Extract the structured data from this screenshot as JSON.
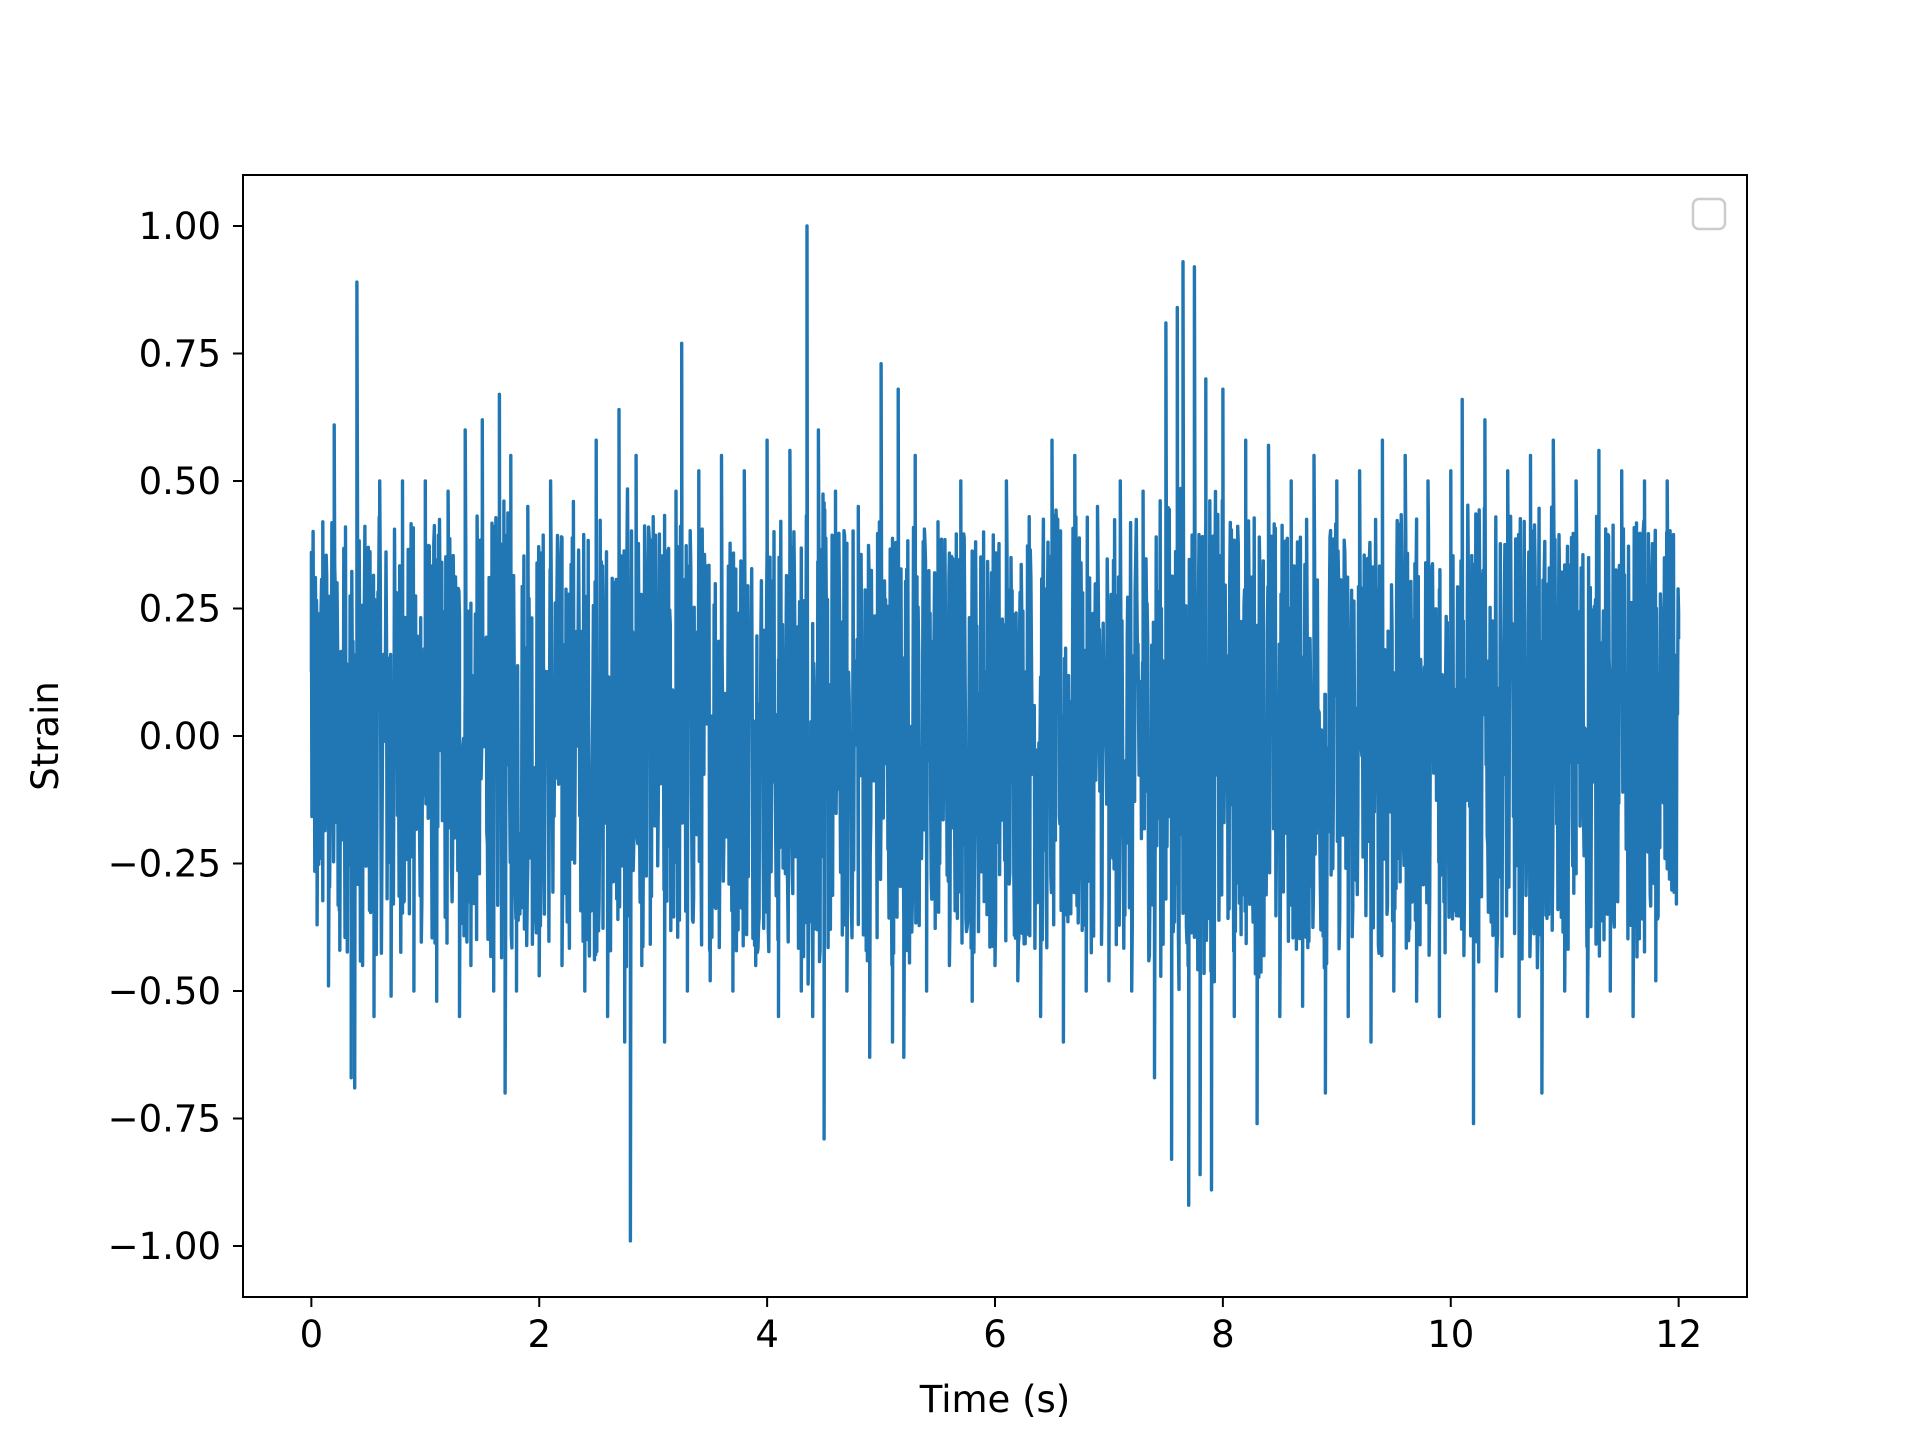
{
  "chart_data": {
    "type": "line",
    "title": "",
    "xlabel": "Time (s)",
    "ylabel": "Strain",
    "xlim": [
      -0.6,
      12.6
    ],
    "ylim": [
      -1.1,
      1.1
    ],
    "x_ticks": [
      0,
      2,
      4,
      6,
      8,
      10,
      12
    ],
    "x_tick_labels": [
      "0",
      "2",
      "4",
      "6",
      "8",
      "10",
      "12"
    ],
    "y_ticks": [
      1.0,
      0.75,
      0.5,
      0.25,
      0.0,
      -0.25,
      -0.5,
      -0.75,
      -1.0
    ],
    "y_tick_labels": [
      "1.00",
      "0.75",
      "0.50",
      "0.25",
      "0.00",
      "−0.25",
      "−0.50",
      "−0.75",
      "−1.00"
    ],
    "grid": false,
    "legend": {
      "placement": "top-right",
      "entries": []
    },
    "series_color": "#2077b4",
    "series": [
      {
        "description_free": true,
        "x": [
          0.0,
          0.05,
          0.1,
          0.15,
          0.2,
          0.25,
          0.3,
          0.35,
          0.38,
          0.4,
          0.45,
          0.5,
          0.55,
          0.6,
          0.7,
          0.8,
          0.9,
          1.0,
          1.1,
          1.2,
          1.3,
          1.35,
          1.4,
          1.5,
          1.6,
          1.65,
          1.7,
          1.75,
          1.8,
          1.9,
          2.0,
          2.1,
          2.2,
          2.3,
          2.4,
          2.5,
          2.6,
          2.7,
          2.75,
          2.8,
          2.85,
          2.9,
          3.0,
          3.1,
          3.2,
          3.25,
          3.3,
          3.4,
          3.5,
          3.6,
          3.7,
          3.8,
          3.9,
          4.0,
          4.1,
          4.2,
          4.3,
          4.35,
          4.4,
          4.45,
          4.5,
          4.6,
          4.7,
          4.8,
          4.9,
          5.0,
          5.1,
          5.15,
          5.2,
          5.3,
          5.4,
          5.5,
          5.6,
          5.7,
          5.8,
          5.9,
          6.0,
          6.1,
          6.2,
          6.3,
          6.4,
          6.5,
          6.6,
          6.7,
          6.8,
          6.9,
          7.0,
          7.1,
          7.2,
          7.3,
          7.4,
          7.5,
          7.55,
          7.6,
          7.65,
          7.7,
          7.75,
          7.8,
          7.85,
          7.9,
          8.0,
          8.1,
          8.2,
          8.3,
          8.4,
          8.5,
          8.6,
          8.7,
          8.8,
          8.9,
          9.0,
          9.1,
          9.2,
          9.3,
          9.4,
          9.5,
          9.6,
          9.7,
          9.8,
          9.9,
          10.0,
          10.1,
          10.2,
          10.3,
          10.4,
          10.5,
          10.6,
          10.7,
          10.8,
          10.9,
          11.0,
          11.1,
          11.2,
          11.3,
          11.4,
          11.5,
          11.6,
          11.7,
          11.8,
          11.9,
          12.0
        ],
        "y": [
          0.36,
          -0.37,
          0.42,
          -0.49,
          0.61,
          -0.42,
          0.41,
          -0.67,
          -0.69,
          0.89,
          -0.45,
          0.37,
          -0.55,
          0.5,
          -0.51,
          0.5,
          -0.5,
          0.5,
          -0.52,
          0.48,
          -0.55,
          0.6,
          -0.45,
          0.62,
          -0.5,
          0.67,
          -0.7,
          0.55,
          -0.5,
          0.45,
          -0.47,
          0.5,
          -0.45,
          0.46,
          -0.5,
          0.58,
          -0.55,
          0.64,
          -0.6,
          -0.99,
          0.55,
          -0.45,
          0.43,
          -0.6,
          0.48,
          0.77,
          -0.5,
          0.52,
          -0.48,
          0.55,
          -0.5,
          0.52,
          -0.45,
          0.58,
          -0.55,
          0.56,
          -0.5,
          1.0,
          -0.55,
          0.6,
          -0.79,
          0.48,
          -0.5,
          0.45,
          -0.63,
          0.73,
          -0.6,
          0.68,
          -0.63,
          0.55,
          -0.5,
          0.42,
          -0.45,
          0.5,
          -0.52,
          0.4,
          -0.45,
          0.5,
          -0.48,
          0.43,
          -0.55,
          0.58,
          -0.6,
          0.55,
          -0.5,
          0.45,
          -0.48,
          0.5,
          -0.5,
          0.48,
          -0.67,
          0.81,
          -0.83,
          0.84,
          0.93,
          -0.92,
          0.92,
          -0.86,
          0.7,
          -0.89,
          0.68,
          -0.55,
          0.58,
          -0.76,
          0.57,
          -0.55,
          0.5,
          -0.53,
          0.55,
          -0.7,
          0.5,
          -0.55,
          0.52,
          -0.6,
          0.58,
          -0.5,
          0.55,
          -0.52,
          0.5,
          -0.55,
          0.52,
          0.66,
          -0.76,
          0.62,
          -0.5,
          0.52,
          -0.55,
          0.55,
          -0.7,
          0.58,
          -0.5,
          0.5,
          -0.55,
          0.56,
          -0.5,
          0.52,
          -0.55,
          0.5,
          -0.48,
          0.5,
          0.19
        ]
      }
    ]
  }
}
